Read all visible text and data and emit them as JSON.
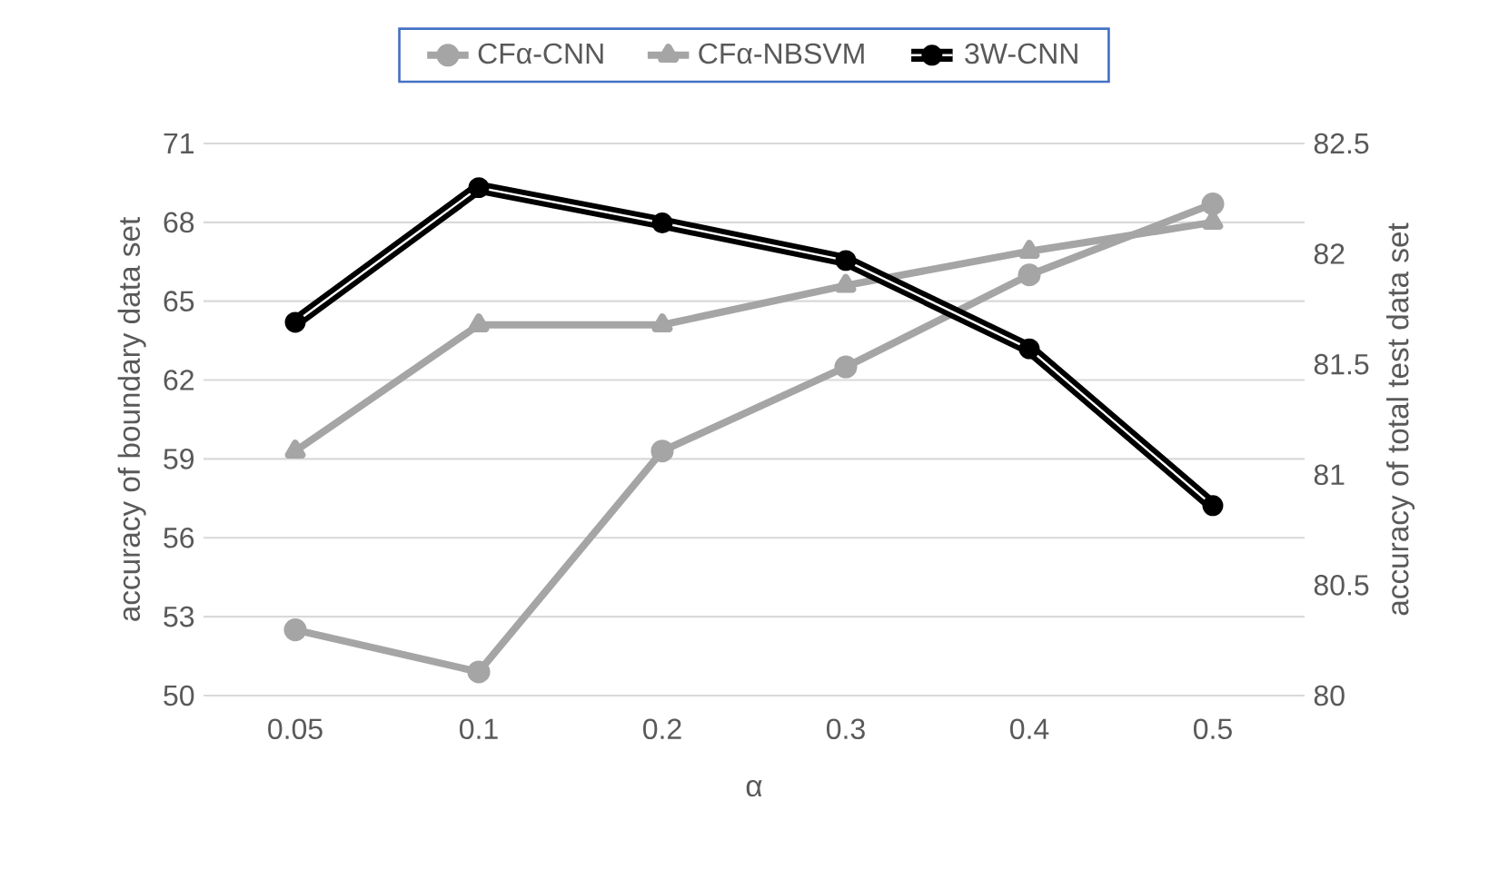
{
  "chart_data": {
    "type": "line",
    "xlabel": "α",
    "ylabel": "accuracy of boundary data set",
    "y2label": "accuracy of total test data set",
    "categories": [
      "0.05",
      "0.1",
      "0.2",
      "0.3",
      "0.4",
      "0.5"
    ],
    "series": [
      {
        "name": "CFα-CNN",
        "color": "#a5a5a5",
        "marker": "circle",
        "values": [
          52.5,
          50.9,
          59.3,
          62.5,
          66.0,
          68.7
        ]
      },
      {
        "name": "CFα-NBSVM",
        "color": "#a5a5a5",
        "marker": "triangle",
        "values": [
          59.3,
          64.1,
          64.1,
          65.6,
          66.9,
          68.0
        ]
      },
      {
        "name": "3W-CNN",
        "color": "#000000",
        "marker": "circle",
        "axis": "y2",
        "values": [
          81.69,
          82.3,
          82.14,
          81.97,
          81.57,
          80.86
        ]
      }
    ],
    "ylim": [
      50,
      71
    ],
    "yticks": [
      50,
      53,
      56,
      59,
      62,
      65,
      68,
      71
    ],
    "y2lim": [
      80,
      82.5
    ],
    "y2ticks": [
      80,
      80.5,
      81,
      81.5,
      82,
      82.5
    ],
    "grid": "y",
    "legend": "top"
  }
}
